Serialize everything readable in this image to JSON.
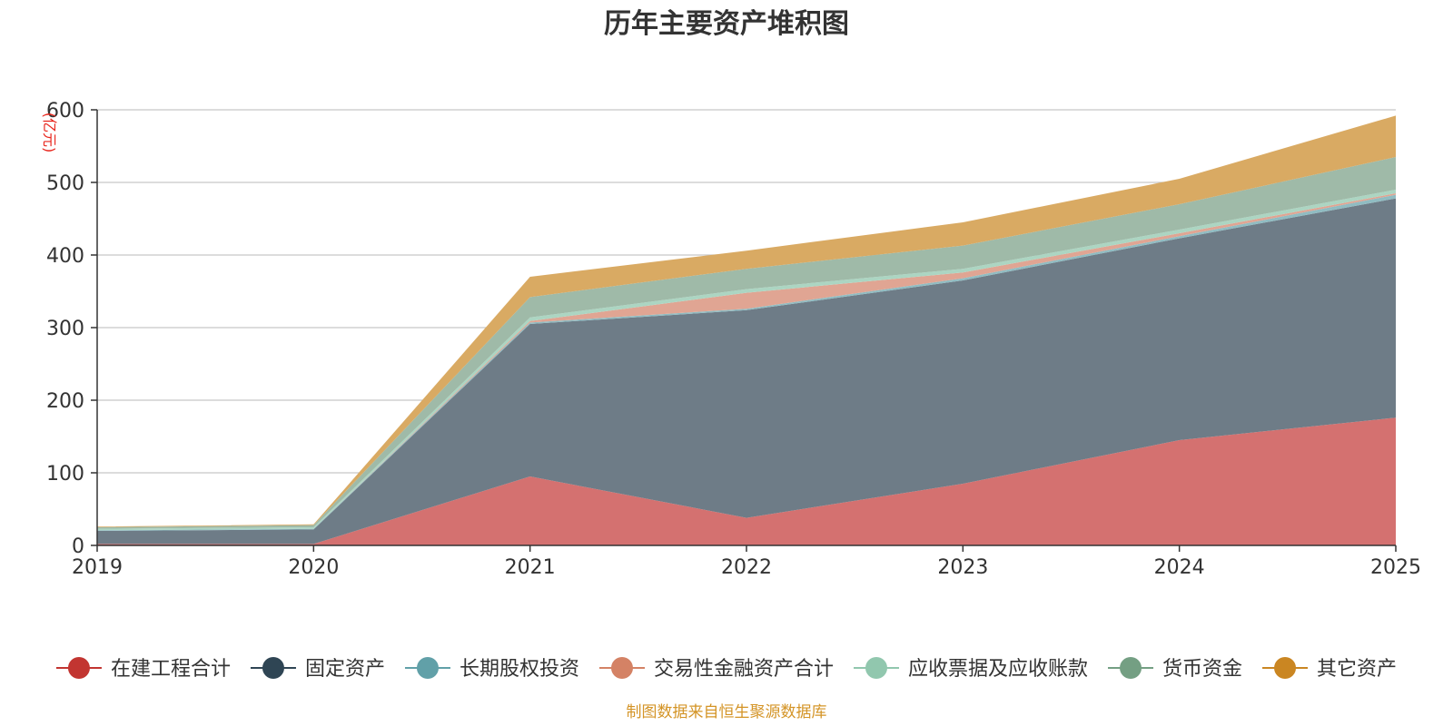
{
  "chart_data": {
    "type": "area",
    "stacked": true,
    "title": "历年主要资产堆积图",
    "ylabel": "(亿元)",
    "xlabel": "",
    "ylim": [
      0,
      600
    ],
    "yticks": [
      0,
      100,
      200,
      300,
      400,
      500,
      600
    ],
    "x": [
      "2019",
      "2020",
      "2021",
      "2022",
      "2023",
      "2024",
      "2025"
    ],
    "legend_position": "bottom",
    "series": [
      {
        "name": "在建工程合计",
        "color": "#c23531",
        "fill": "#d47170",
        "values": [
          2,
          2,
          95,
          38,
          85,
          145,
          176
        ]
      },
      {
        "name": "固定资产",
        "color": "#2f4554",
        "fill": "#6e7c87",
        "values": [
          18,
          20,
          210,
          286,
          280,
          278,
          302
        ]
      },
      {
        "name": "长期股权投资",
        "color": "#61a0a8",
        "fill": "#90bcc2",
        "values": [
          1,
          1,
          2,
          2,
          3,
          3,
          5
        ]
      },
      {
        "name": "交易性金融资产合计",
        "color": "#d48265",
        "fill": "#e0a593",
        "values": [
          0,
          0,
          2,
          22,
          8,
          4,
          2
        ]
      },
      {
        "name": "应收票据及应收账款",
        "color": "#91c7ae",
        "fill": "#acd5c2",
        "values": [
          2,
          2,
          5,
          5,
          5,
          5,
          5
        ]
      },
      {
        "name": "货币资金",
        "color": "#749f83",
        "fill": "#9fbaa8",
        "values": [
          2,
          3,
          28,
          28,
          32,
          35,
          45
        ]
      },
      {
        "name": "其它资产",
        "color": "#ca8622",
        "fill": "#d9aa63",
        "values": [
          1,
          1,
          28,
          25,
          32,
          35,
          57
        ]
      }
    ]
  },
  "footer": {
    "source": "制图数据来自恒生聚源数据库"
  },
  "colors": {
    "axis": "#333333",
    "grid": "#c8c8c8",
    "ylabel": "#e8251c",
    "source": "#d49426"
  }
}
